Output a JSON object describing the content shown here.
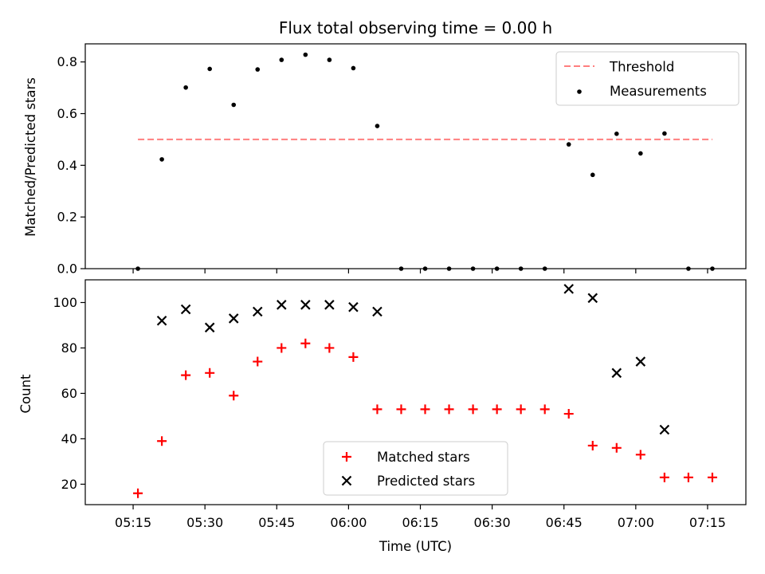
{
  "chart_data": [
    {
      "type": "scatter",
      "title": "Flux total observing time = 0.00 h",
      "ylabel": "Matched/Predicted stars",
      "xlabel": "",
      "ylim": [
        0,
        0.87
      ],
      "y_ticks": [
        "0.0",
        "0.2",
        "0.4",
        "0.6",
        "0.8"
      ],
      "x_ticks": [
        "05:15",
        "05:30",
        "05:45",
        "06:00",
        "06:15",
        "06:30",
        "06:45",
        "07:00",
        "07:15"
      ],
      "x_tick_labels_visible": false,
      "legend_position": "upper right",
      "threshold": {
        "name": "Threshold",
        "value": 0.5,
        "color": "#ff7f7f",
        "style": "dashed",
        "x_range": [
          "05:16",
          "07:16"
        ]
      },
      "series": [
        {
          "name": "Measurements",
          "color": "#000000",
          "marker": "dot",
          "x": [
            "05:16",
            "05:21",
            "05:26",
            "05:31",
            "05:36",
            "05:41",
            "05:46",
            "05:51",
            "05:56",
            "06:01",
            "06:06",
            "06:11",
            "06:16",
            "06:21",
            "06:26",
            "06:31",
            "06:36",
            "06:41",
            "06:46",
            "06:51",
            "06:56",
            "07:01",
            "07:06",
            "07:11",
            "07:16"
          ],
          "y": [
            0.0,
            0.423,
            0.701,
            0.773,
            0.634,
            0.771,
            0.808,
            0.828,
            0.808,
            0.776,
            0.552,
            0.0,
            0.0,
            0.0,
            0.0,
            0.0,
            0.0,
            0.0,
            0.481,
            0.363,
            0.522,
            0.446,
            0.523,
            0.0,
            0.0
          ]
        }
      ]
    },
    {
      "type": "scatter",
      "title": "",
      "xlabel": "Time (UTC)",
      "ylabel": "Count",
      "ylim": [
        11,
        110
      ],
      "y_ticks": [
        "20",
        "40",
        "60",
        "80",
        "100"
      ],
      "x_ticks": [
        "05:15",
        "05:30",
        "05:45",
        "06:00",
        "06:15",
        "06:30",
        "06:45",
        "07:00",
        "07:15"
      ],
      "legend_position": "lower center",
      "series": [
        {
          "name": "Matched stars",
          "color": "#ff0000",
          "marker": "plus",
          "x": [
            "05:16",
            "05:21",
            "05:26",
            "05:31",
            "05:36",
            "05:41",
            "05:46",
            "05:51",
            "05:56",
            "06:01",
            "06:06",
            "06:11",
            "06:16",
            "06:21",
            "06:26",
            "06:31",
            "06:36",
            "06:41",
            "06:46",
            "06:51",
            "06:56",
            "07:01",
            "07:06",
            "07:11",
            "07:16"
          ],
          "y": [
            16,
            39,
            68,
            69,
            59,
            74,
            80,
            82,
            80,
            76,
            53,
            53,
            53,
            53,
            53,
            53,
            53,
            53,
            51,
            37,
            36,
            33,
            23,
            23,
            23
          ]
        },
        {
          "name": "Predicted stars",
          "color": "#000000",
          "marker": "x",
          "x": [
            "05:21",
            "05:26",
            "05:31",
            "05:36",
            "05:41",
            "05:46",
            "05:51",
            "05:56",
            "06:01",
            "06:06",
            "06:46",
            "06:51",
            "06:56",
            "07:01",
            "07:06"
          ],
          "y": [
            92,
            97,
            89,
            93,
            96,
            99,
            99,
            99,
            98,
            96,
            106,
            102,
            69,
            74,
            44
          ]
        }
      ]
    }
  ]
}
